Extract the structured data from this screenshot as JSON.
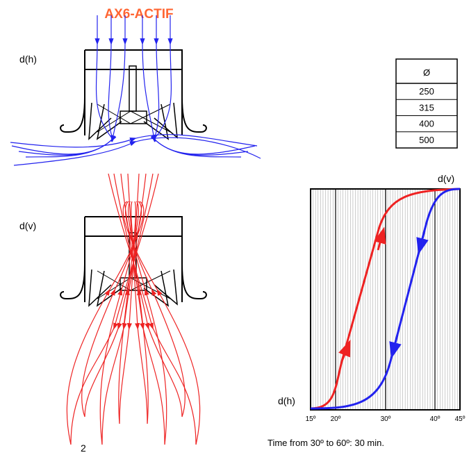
{
  "title": "AX6-ACTIF",
  "top_diffuser": {
    "label": "d(h)"
  },
  "bottom_diffuser": {
    "label": "d(v)",
    "number": "2"
  },
  "table": {
    "header": "Ø",
    "rows": [
      250,
      315,
      400,
      500
    ]
  },
  "graph": {
    "top_label": "d(v)",
    "bottom_label": "d(h)",
    "x_labels": [
      "15º",
      "20º",
      "30º",
      "40º",
      "45º"
    ],
    "caption": "Time from 30º to 60º: 30 min."
  }
}
